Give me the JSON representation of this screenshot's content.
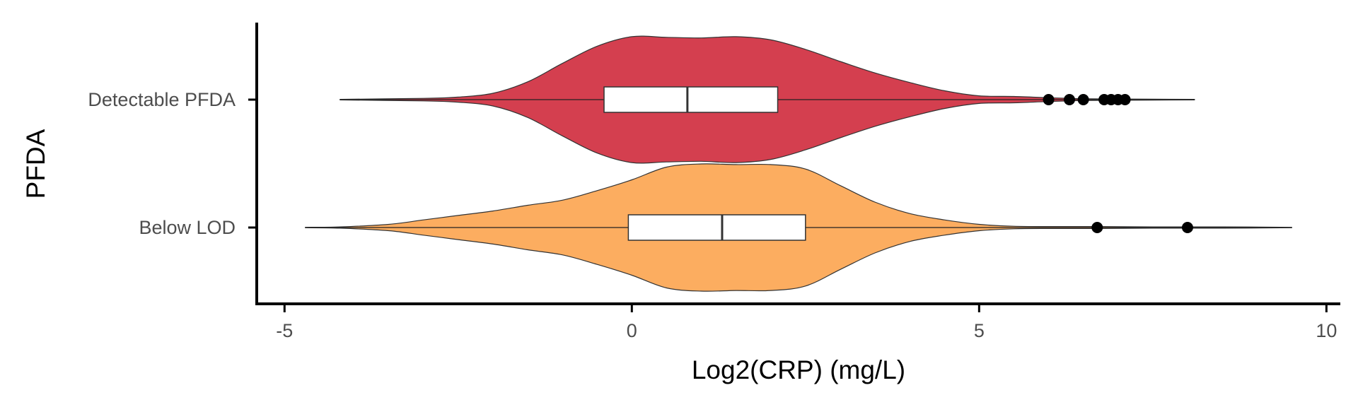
{
  "chart_data": {
    "type": "violin",
    "xlabel": "Log2(CRP) (mg/L)",
    "ylabel": "PFDA",
    "xlim": [
      -5.4,
      10.2
    ],
    "x_ticks": [
      -5,
      0,
      5,
      10
    ],
    "x_tick_labels": [
      "-5",
      "0",
      "5",
      "10"
    ],
    "grid": false,
    "legend": "none",
    "groups": [
      {
        "label": "Detectable PFDA",
        "color": "#d43f4f",
        "range": [
          -4.2,
          8.1
        ],
        "box": {
          "q1": -0.4,
          "median": 0.8,
          "q3": 2.1,
          "whisker_low": -4.2,
          "whisker_high": 8.1
        },
        "outliers": [
          6.0,
          6.3,
          6.5,
          6.8,
          6.9,
          7.0,
          7.1
        ],
        "density": [
          [
            -4.2,
            0.005
          ],
          [
            -3.0,
            0.02
          ],
          [
            -2.5,
            0.04
          ],
          [
            -2.0,
            0.1
          ],
          [
            -1.5,
            0.28
          ],
          [
            -1.0,
            0.57
          ],
          [
            -0.5,
            0.84
          ],
          [
            0.0,
            0.99
          ],
          [
            0.5,
            0.98
          ],
          [
            1.0,
            0.97
          ],
          [
            1.5,
            0.99
          ],
          [
            2.0,
            0.94
          ],
          [
            2.5,
            0.79
          ],
          [
            3.0,
            0.6
          ],
          [
            3.5,
            0.42
          ],
          [
            4.0,
            0.27
          ],
          [
            4.5,
            0.14
          ],
          [
            5.0,
            0.06
          ],
          [
            5.5,
            0.05
          ],
          [
            6.0,
            0.03
          ],
          [
            6.5,
            0.015
          ],
          [
            7.0,
            0.01
          ],
          [
            8.1,
            0.005
          ]
        ]
      },
      {
        "label": "Below LOD",
        "color": "#fcad60",
        "range": [
          -4.7,
          9.5
        ],
        "box": {
          "q1": -0.05,
          "median": 1.3,
          "q3": 2.5,
          "whisker_low": -4.7,
          "whisker_high": 9.5
        },
        "outliers": [
          6.7,
          8.0
        ],
        "density": [
          [
            -4.7,
            0.003
          ],
          [
            -4.2,
            0.01
          ],
          [
            -3.5,
            0.05
          ],
          [
            -3.0,
            0.12
          ],
          [
            -2.5,
            0.19
          ],
          [
            -2.0,
            0.26
          ],
          [
            -1.5,
            0.35
          ],
          [
            -1.0,
            0.43
          ],
          [
            -0.5,
            0.58
          ],
          [
            0.0,
            0.75
          ],
          [
            0.5,
            0.95
          ],
          [
            1.0,
            1.0
          ],
          [
            1.5,
            0.99
          ],
          [
            2.0,
            0.99
          ],
          [
            2.5,
            0.92
          ],
          [
            3.0,
            0.66
          ],
          [
            3.5,
            0.4
          ],
          [
            4.0,
            0.22
          ],
          [
            4.5,
            0.12
          ],
          [
            5.0,
            0.05
          ],
          [
            5.5,
            0.02
          ],
          [
            6.0,
            0.015
          ],
          [
            6.7,
            0.015
          ],
          [
            7.5,
            0.01
          ],
          [
            8.5,
            0.01
          ],
          [
            9.5,
            0.003
          ]
        ]
      }
    ]
  }
}
